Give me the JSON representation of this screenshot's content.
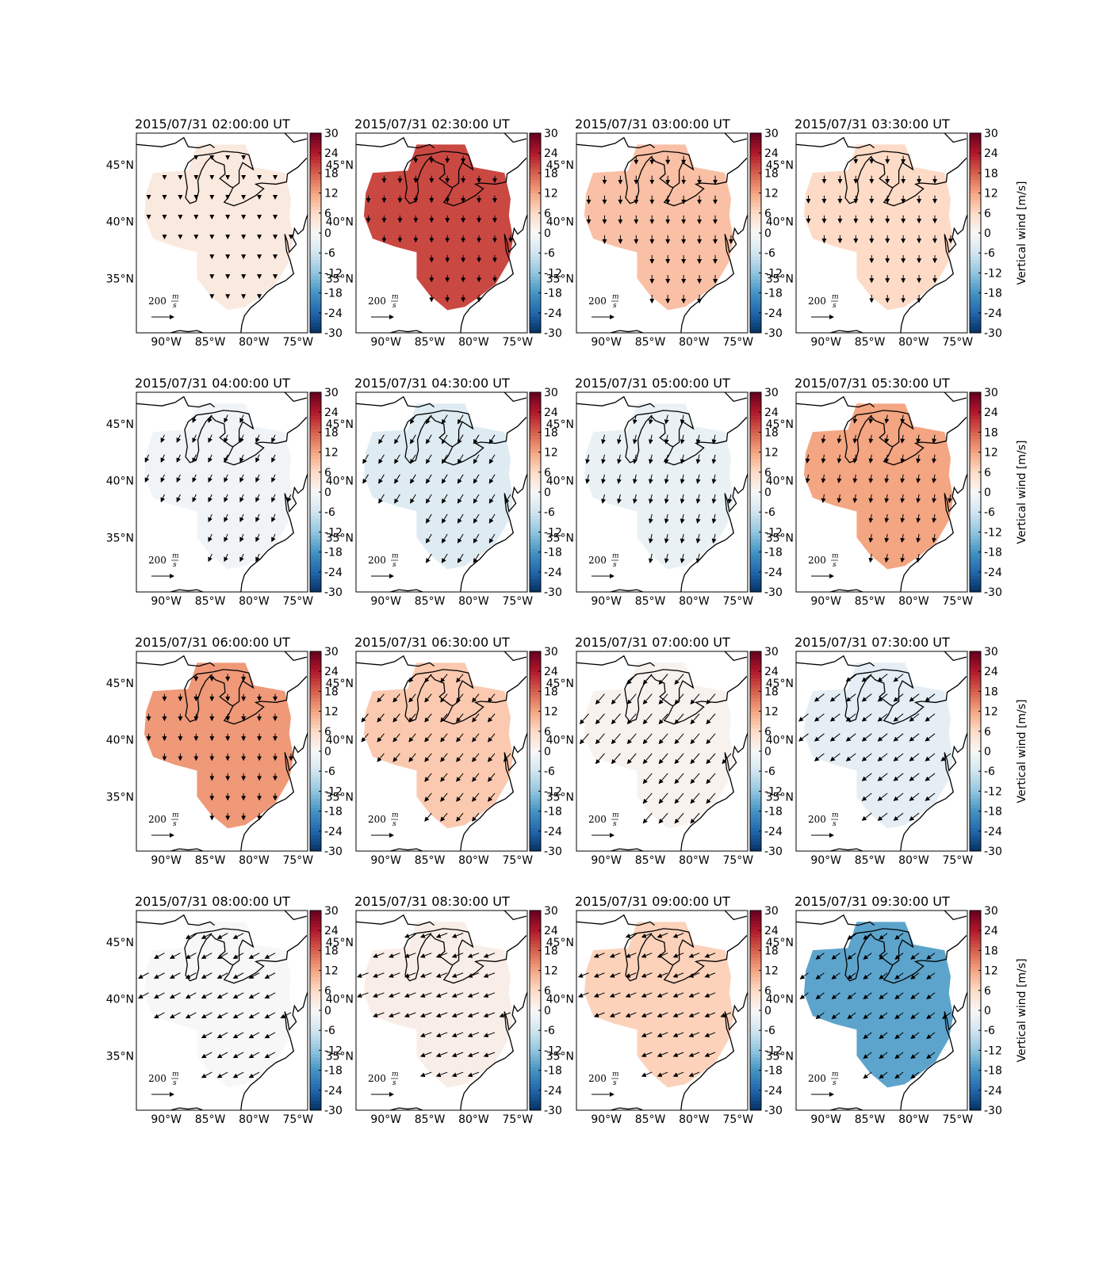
{
  "figure": {
    "xlim": [
      -93.4,
      -73.9
    ],
    "ylim": [
      30.2,
      47.8
    ],
    "xticks": [
      {
        "value": -90,
        "label": "90°W"
      },
      {
        "value": -85,
        "label": "85°W"
      },
      {
        "value": -80,
        "label": "80°W"
      },
      {
        "value": -75,
        "label": "75°W"
      }
    ],
    "yticks": [
      {
        "value": 35,
        "label": "35°N"
      },
      {
        "value": 40,
        "label": "40°N"
      },
      {
        "value": 45,
        "label": "45°N"
      }
    ],
    "colorbar_label": "Vertical wind [m/s]",
    "clim": [
      -30,
      30
    ],
    "colorbar_ticks": [
      -30,
      -24,
      -18,
      -12,
      -6,
      0,
      6,
      12,
      18,
      24,
      30
    ],
    "colormap": [
      "#053061",
      "#2166ac",
      "#4393c3",
      "#92c5de",
      "#d1e5f0",
      "#f7f7f7",
      "#fddbc7",
      "#f4a582",
      "#d6604d",
      "#b2182b",
      "#67001f"
    ],
    "scale_value": 200,
    "scale_unit_num": "m",
    "scale_unit_den": "s",
    "panels": [
      {
        "title": "2015/07/31 02:00:00 UT",
        "vertical_wind": 3,
        "u": 0,
        "v": -50
      },
      {
        "title": "2015/07/31 02:30:00 UT",
        "vertical_wind": 20,
        "u": 0,
        "v": -100
      },
      {
        "title": "2015/07/31 03:00:00 UT",
        "vertical_wind": 9,
        "u": 0,
        "v": -120
      },
      {
        "title": "2015/07/31 03:30:00 UT",
        "vertical_wind": 6,
        "u": 0,
        "v": -110
      },
      {
        "title": "2015/07/31 04:00:00 UT",
        "vertical_wind": -1,
        "u": -50,
        "v": -110
      },
      {
        "title": "2015/07/31 04:30:00 UT",
        "vertical_wind": -4,
        "u": -80,
        "v": -130
      },
      {
        "title": "2015/07/31 05:00:00 UT",
        "vertical_wind": -2,
        "u": -30,
        "v": -130
      },
      {
        "title": "2015/07/31 05:30:00 UT",
        "vertical_wind": 12,
        "u": -20,
        "v": -120
      },
      {
        "title": "2015/07/31 06:00:00 UT",
        "vertical_wind": 13,
        "u": 0,
        "v": -100
      },
      {
        "title": "2015/07/31 06:30:00 UT",
        "vertical_wind": 8,
        "u": -100,
        "v": -120
      },
      {
        "title": "2015/07/31 07:00:00 UT",
        "vertical_wind": 1,
        "u": -130,
        "v": -150
      },
      {
        "title": "2015/07/31 07:30:00 UT",
        "vertical_wind": -3,
        "u": -140,
        "v": -110
      },
      {
        "title": "2015/07/31 08:00:00 UT",
        "vertical_wind": 0,
        "u": -150,
        "v": -80
      },
      {
        "title": "2015/07/31 08:30:00 UT",
        "vertical_wind": 2,
        "u": -160,
        "v": -60
      },
      {
        "title": "2015/07/31 09:00:00 UT",
        "vertical_wind": 7,
        "u": -150,
        "v": -60
      },
      {
        "title": "2015/07/31 09:30:00 UT",
        "vertical_wind": -16,
        "u": -120,
        "v": -90
      }
    ]
  }
}
